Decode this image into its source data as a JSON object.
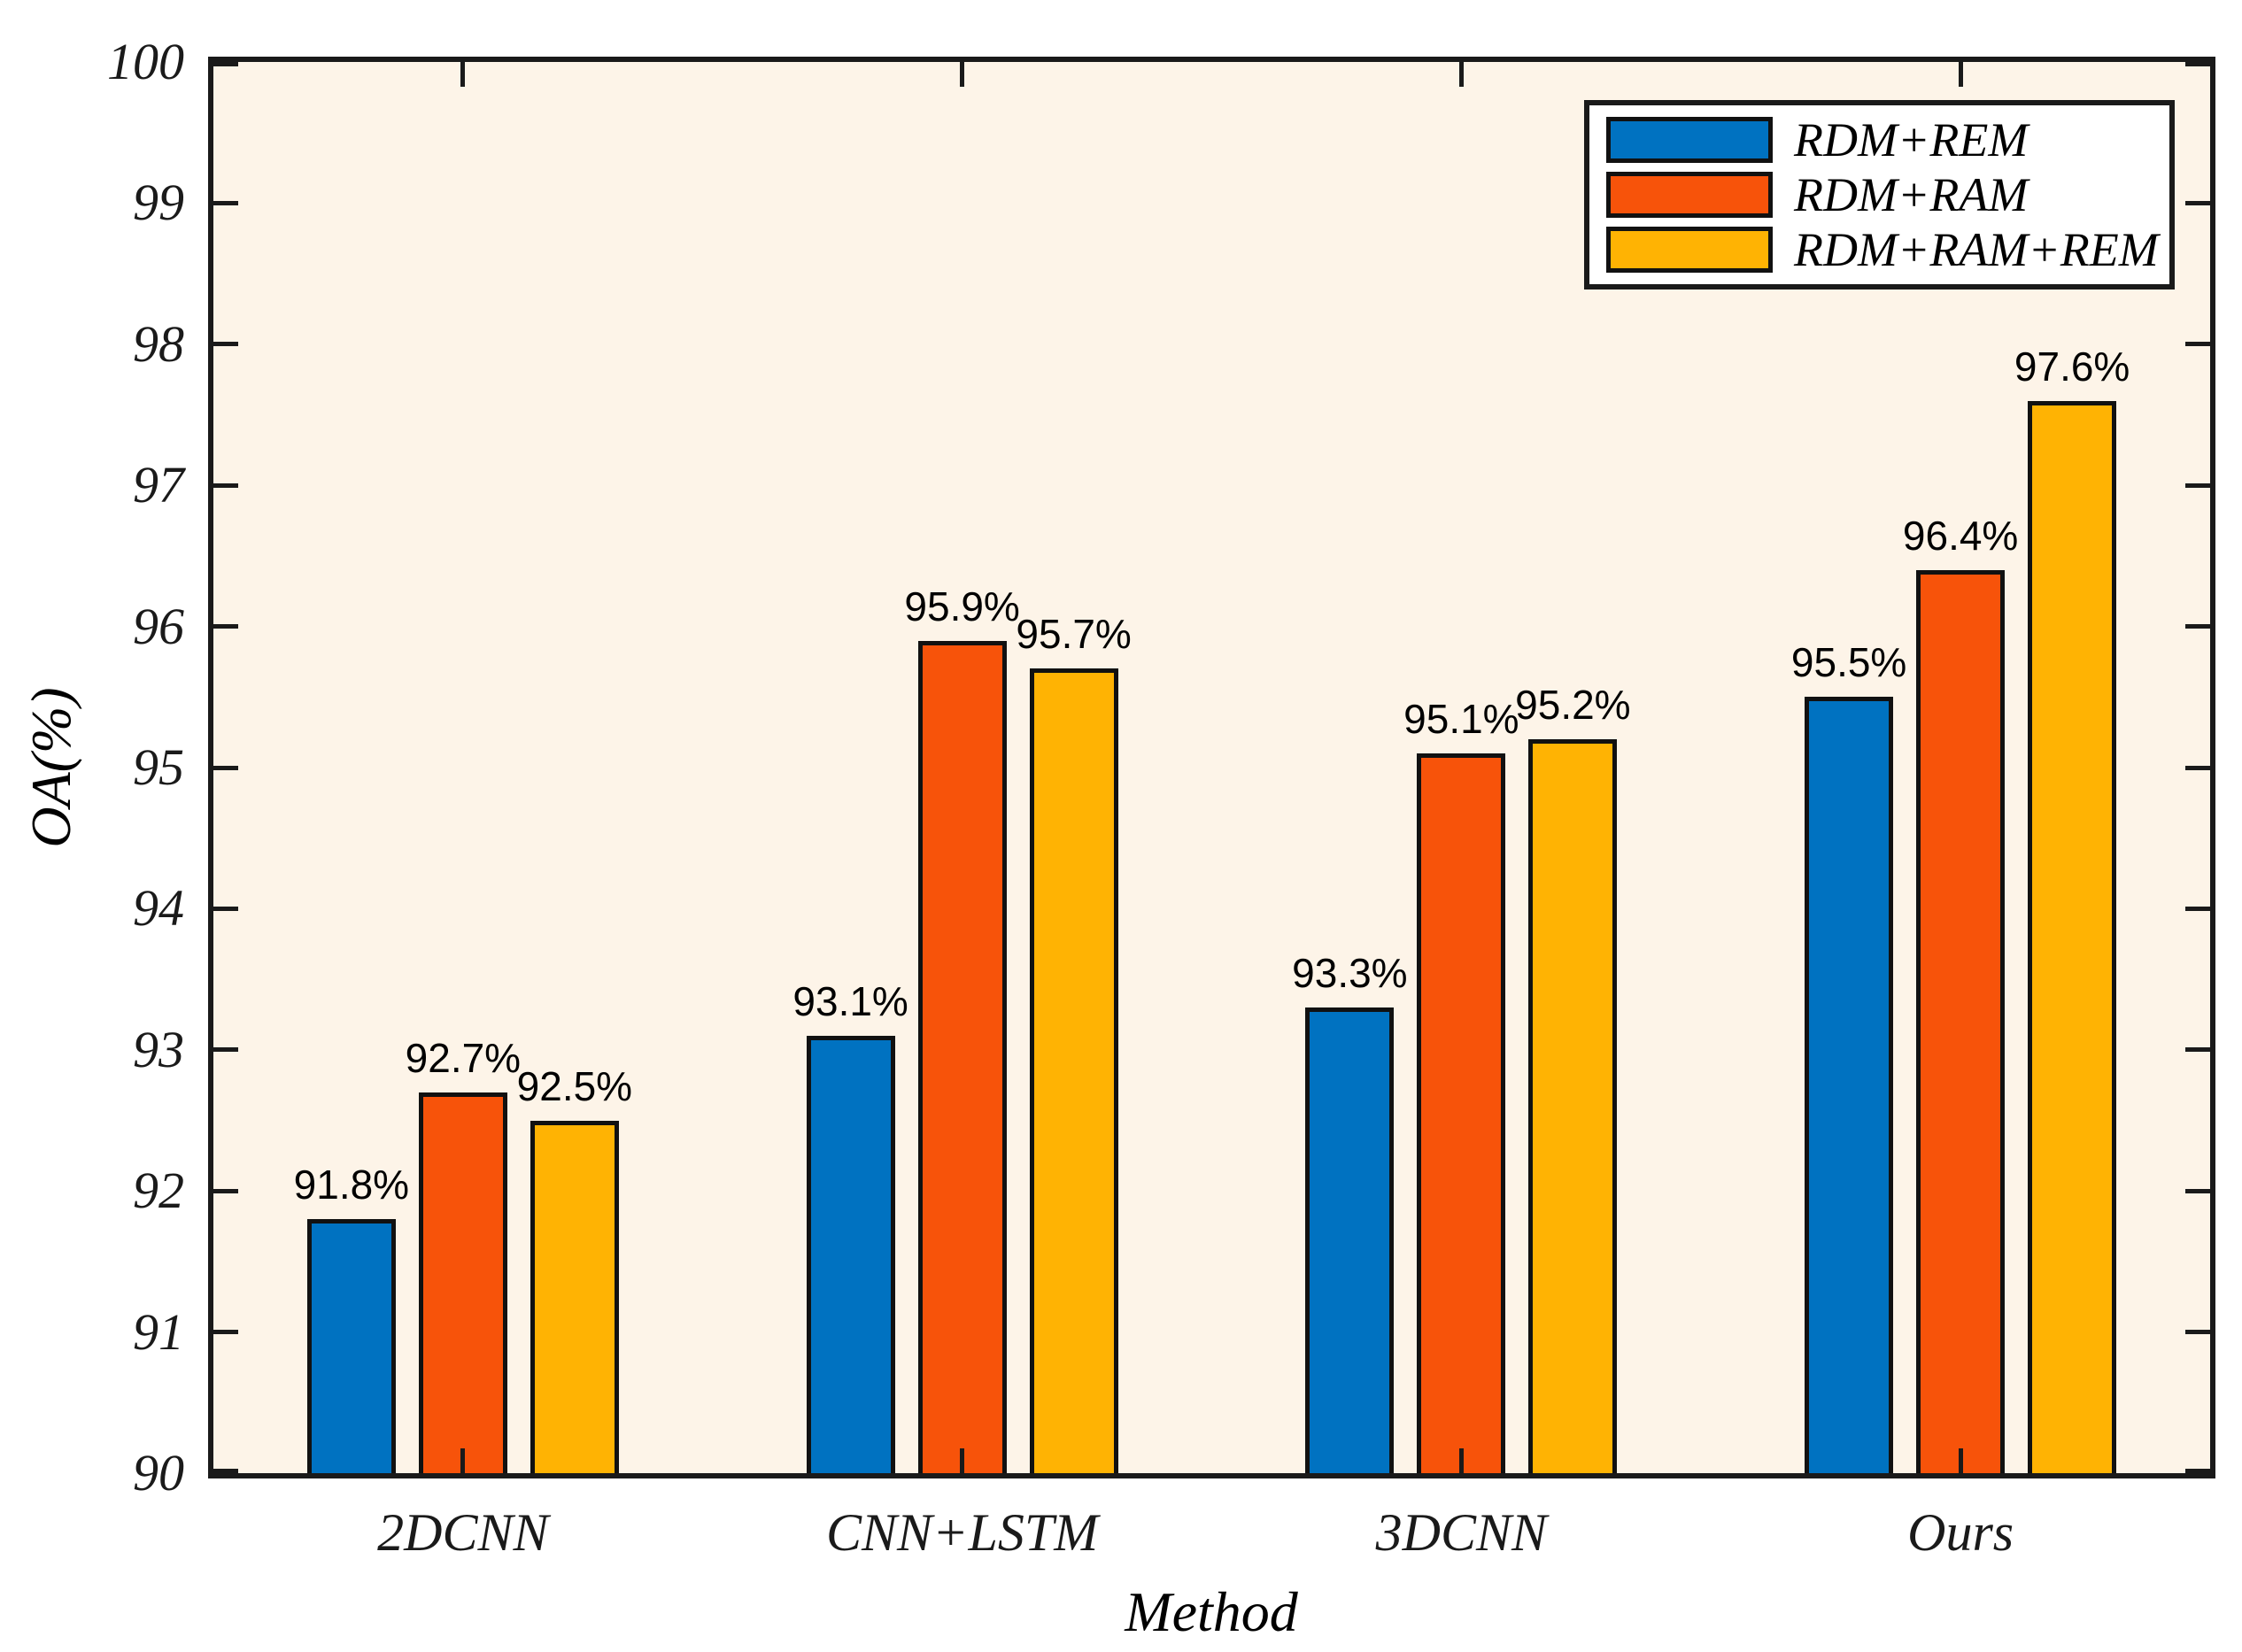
{
  "figure": {
    "xlabel": "Method",
    "ylabel": "OA(%)"
  },
  "style": {
    "plot_background": "#FDF4E8",
    "axis_color": "#1a1a1a",
    "bar_edge_color": "#111111",
    "legend_background": "#ffffff"
  },
  "chart_data": {
    "type": "bar",
    "title": "",
    "xlabel": "Method",
    "ylabel": "OA(%)",
    "categories": [
      "2DCNN",
      "CNN+LSTM",
      "3DCNN",
      "Ours"
    ],
    "series": [
      {
        "name": "RDM+REM",
        "color": "#0072C1",
        "values": [
          91.8,
          93.1,
          93.3,
          95.5
        ]
      },
      {
        "name": "RDM+RAM",
        "color": "#F7530A",
        "values": [
          92.7,
          95.9,
          95.1,
          96.4
        ]
      },
      {
        "name": "RDM+RAM+REM",
        "color": "#FFB303",
        "values": [
          92.5,
          95.7,
          95.2,
          97.6
        ]
      }
    ],
    "data_label_suffix": "%",
    "ylim": [
      90,
      100
    ],
    "yticks": [
      90,
      91,
      92,
      93,
      94,
      95,
      96,
      97,
      98,
      99,
      100
    ],
    "grid": false,
    "legend_position": "top-right"
  }
}
